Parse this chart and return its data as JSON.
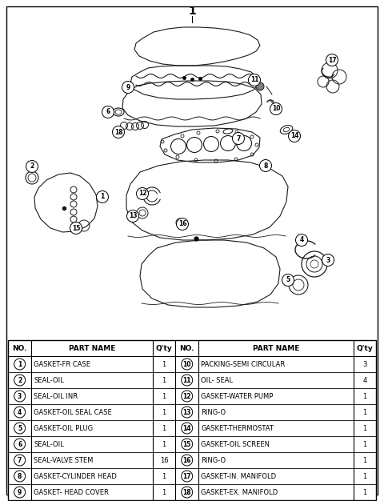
{
  "title_number": "1",
  "parts_left": [
    {
      "no": 1,
      "name": "GASKET-FR CASE",
      "qty": "1"
    },
    {
      "no": 2,
      "name": "SEAL-OIL",
      "qty": "1"
    },
    {
      "no": 3,
      "name": "SEAL-OIL INR",
      "qty": "1"
    },
    {
      "no": 4,
      "name": "GASKET-OIL SEAL CASE",
      "qty": "1"
    },
    {
      "no": 5,
      "name": "GASKET-OIL PLUG",
      "qty": "1"
    },
    {
      "no": 6,
      "name": "SEAL-OIL",
      "qty": "1"
    },
    {
      "no": 7,
      "name": "SEAL-VALVE STEM",
      "qty": "16"
    },
    {
      "no": 8,
      "name": "GASKET-CYLINDER HEAD",
      "qty": "1"
    },
    {
      "no": 9,
      "name": "GASKET- HEAD COVER",
      "qty": "1"
    }
  ],
  "parts_right": [
    {
      "no": 10,
      "name": "PACKING-SEMI CIRCULAR",
      "qty": "3"
    },
    {
      "no": 11,
      "name": "OIL- SEAL",
      "qty": "4"
    },
    {
      "no": 12,
      "name": "GASKET-WATER PUMP",
      "qty": "1"
    },
    {
      "no": 13,
      "name": "RING-O",
      "qty": "1"
    },
    {
      "no": 14,
      "name": "GASKET-THERMOSTAT",
      "qty": "1"
    },
    {
      "no": 15,
      "name": "GASKET-OIL SCREEN",
      "qty": "1"
    },
    {
      "no": 16,
      "name": "RING-O",
      "qty": "1"
    },
    {
      "no": 17,
      "name": "GASKET-IN. MANIFOLD",
      "qty": "1"
    },
    {
      "no": 18,
      "name": "GASKET-EX. MANIFOLD",
      "qty": "1"
    }
  ],
  "bg_color": "#ffffff",
  "fig_width": 4.8,
  "fig_height": 6.26,
  "dpi": 100
}
